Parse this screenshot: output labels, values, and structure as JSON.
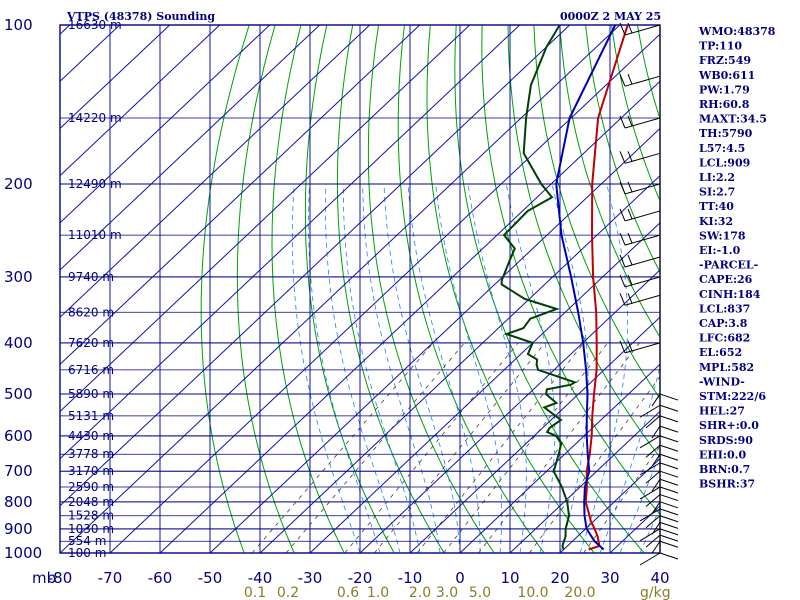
{
  "header": {
    "station": "VTPS (48378) Sounding",
    "datetime": "0000Z  2 MAY 25"
  },
  "indices": [
    "WMO:48378",
    "TP:110",
    "FRZ:549",
    "WB0:611",
    "PW:1.79",
    "RH:60.8",
    "MAXT:34.5",
    "TH:5790",
    "L57:4.5",
    "LCL:909",
    "LI:2.2",
    "SI:2.7",
    "TT:40",
    "KI:32",
    "SW:178",
    "EI:-1.0",
    "-PARCEL-",
    "CAPE:26",
    "CINH:184",
    "LCL:837",
    "CAP:3.8",
    "LFC:682",
    "EL:652",
    "MPL:582",
    "-WIND-",
    "STM:222/6",
    "HEL:27",
    "SHR+:0.0",
    "SRDS:90",
    "EHI:0.0",
    "BRN:0.7",
    "BSHR:37"
  ],
  "chart_data": {
    "type": "line",
    "title": "VTPS (48378) Sounding",
    "xlabel": "",
    "ylabel": "mb",
    "x_unit_label": "mb",
    "mixing_ratio_unit": "g/kg",
    "y_scale": "log",
    "ylim": [
      1000,
      100
    ],
    "xlim": [
      -80,
      40
    ],
    "skew": true,
    "pressure_levels": [
      100,
      200,
      300,
      400,
      500,
      600,
      700,
      800,
      900,
      1000
    ],
    "pressure_tick_labels": [
      "100",
      "200",
      "300",
      "400",
      "500",
      "600",
      "700",
      "800",
      "900",
      "1000"
    ],
    "temperature_ticks": [
      -80,
      -70,
      -60,
      -50,
      -40,
      -30,
      -20,
      -10,
      0,
      10,
      20,
      30,
      40
    ],
    "temperature_tick_labels": [
      "-80",
      "-70",
      "-60",
      "-50",
      "-40",
      "-30",
      "-20",
      "-10",
      "0",
      "10",
      "20",
      "30",
      "40"
    ],
    "mixing_ratio_labels": [
      "0.1",
      "0.2",
      "0.6",
      "1.0",
      "2.0",
      "3.0",
      "5.0",
      "10.0",
      "20.0"
    ],
    "heights": [
      {
        "p": 100,
        "label": "16630 m"
      },
      {
        "p": 150,
        "label": "14220 m"
      },
      {
        "p": 200,
        "label": "12490 m"
      },
      {
        "p": 250,
        "label": "11010 m"
      },
      {
        "p": 300,
        "label": "9740 m"
      },
      {
        "p": 350,
        "label": "8620 m"
      },
      {
        "p": 400,
        "label": "7620 m"
      },
      {
        "p": 450,
        "label": "6716 m"
      },
      {
        "p": 500,
        "label": "5890 m"
      },
      {
        "p": 550,
        "label": "5131 m"
      },
      {
        "p": 600,
        "label": "4430 m"
      },
      {
        "p": 650,
        "label": "3778 m"
      },
      {
        "p": 700,
        "label": "3170 m"
      },
      {
        "p": 750,
        "label": "2590 m"
      },
      {
        "p": 800,
        "label": "2048 m"
      },
      {
        "p": 850,
        "label": "1528 m"
      },
      {
        "p": 900,
        "label": "1030 m"
      },
      {
        "p": 950,
        "label": "554 m"
      },
      {
        "p": 1000,
        "label": "100 m"
      }
    ],
    "series": [
      {
        "key": "temperature",
        "color": "#c00000",
        "points": [
          [
            985,
            25.0
          ],
          [
            970,
            26.4
          ],
          [
            930,
            24.0
          ],
          [
            900,
            21.8
          ],
          [
            870,
            19.4
          ],
          [
            850,
            18.0
          ],
          [
            800,
            14.3
          ],
          [
            750,
            11.4
          ],
          [
            700,
            8.0
          ],
          [
            650,
            5.0
          ],
          [
            600,
            1.5
          ],
          [
            550,
            -2.6
          ],
          [
            500,
            -6.9
          ],
          [
            450,
            -11.5
          ],
          [
            400,
            -17.2
          ],
          [
            350,
            -23.8
          ],
          [
            300,
            -31.9
          ],
          [
            250,
            -41.0
          ],
          [
            200,
            -51.8
          ],
          [
            150,
            -64.6
          ],
          [
            100,
            -78.4
          ]
        ]
      },
      {
        "key": "dewpoint",
        "color": "#004000",
        "points": [
          [
            985,
            20.0
          ],
          [
            970,
            19.0
          ],
          [
            930,
            17.6
          ],
          [
            900,
            16.0
          ],
          [
            850,
            13.9
          ],
          [
            800,
            10.6
          ],
          [
            750,
            6.4
          ],
          [
            700,
            1.4
          ],
          [
            680,
            0.4
          ],
          [
            650,
            -1.2
          ],
          [
            620,
            -3.0
          ],
          [
            600,
            -5.6
          ],
          [
            590,
            -8.2
          ],
          [
            580,
            -8.6
          ],
          [
            560,
            -8.0
          ],
          [
            530,
            -14.0
          ],
          [
            520,
            -12.5
          ],
          [
            500,
            -16.5
          ],
          [
            490,
            -17.3
          ],
          [
            480,
            -13.5
          ],
          [
            475,
            -13.2
          ],
          [
            450,
            -23.2
          ],
          [
            440,
            -24.6
          ],
          [
            430,
            -25.6
          ],
          [
            420,
            -28.6
          ],
          [
            400,
            -30.0
          ],
          [
            385,
            -37.1
          ],
          [
            375,
            -35.0
          ],
          [
            360,
            -35.6
          ],
          [
            345,
            -32.4
          ],
          [
            330,
            -41.0
          ],
          [
            310,
            -48.6
          ],
          [
            305,
            -49.4
          ],
          [
            280,
            -52.0
          ],
          [
            265,
            -53.6
          ],
          [
            250,
            -58.6
          ],
          [
            225,
            -59.0
          ],
          [
            212,
            -57.0
          ],
          [
            200,
            -62.0
          ],
          [
            175,
            -72.0
          ],
          [
            150,
            -79.0
          ],
          [
            130,
            -85.0
          ],
          [
            110,
            -90.0
          ],
          [
            100,
            -92.0
          ]
        ]
      },
      {
        "key": "parcel",
        "color": "#0000b0",
        "points": [
          [
            985,
            28.0
          ],
          [
            950,
            24.4
          ],
          [
            900,
            20.2
          ],
          [
            850,
            17.0
          ],
          [
            800,
            14.0
          ],
          [
            750,
            11.0
          ],
          [
            700,
            8.5
          ],
          [
            650,
            4.6
          ],
          [
            600,
            0.5
          ],
          [
            550,
            -3.7
          ],
          [
            500,
            -8.2
          ],
          [
            450,
            -13.6
          ],
          [
            400,
            -19.9
          ],
          [
            350,
            -27.4
          ],
          [
            300,
            -36.3
          ],
          [
            250,
            -47.1
          ],
          [
            200,
            -59.0
          ],
          [
            150,
            -70.3
          ],
          [
            100,
            -80.9
          ]
        ]
      }
    ],
    "wind_barbs": [
      {
        "p": 100
      },
      {
        "p": 125
      },
      {
        "p": 150
      },
      {
        "p": 175
      },
      {
        "p": 200
      },
      {
        "p": 225
      },
      {
        "p": 250
      },
      {
        "p": 275
      },
      {
        "p": 300
      },
      {
        "p": 325
      },
      {
        "p": 400
      },
      {
        "p": 500
      },
      {
        "p": 525
      },
      {
        "p": 550
      },
      {
        "p": 575
      },
      {
        "p": 600
      },
      {
        "p": 625
      },
      {
        "p": 650
      },
      {
        "p": 675
      },
      {
        "p": 700
      },
      {
        "p": 725
      },
      {
        "p": 750
      },
      {
        "p": 775
      },
      {
        "p": 800
      },
      {
        "p": 825
      },
      {
        "p": 850
      },
      {
        "p": 875
      },
      {
        "p": 900
      },
      {
        "p": 925
      },
      {
        "p": 950
      },
      {
        "p": 1000
      }
    ],
    "colors": {
      "frame": "#000080",
      "isotherm": "#1010b0",
      "isobar": "#000080",
      "dry_adiabat": "#00a000",
      "moist_adiabat": "#2080ff",
      "mixing_ratio": "#404040",
      "wind_barb": "#000000",
      "mixing_ratio_label": "#8a7a2a"
    }
  }
}
